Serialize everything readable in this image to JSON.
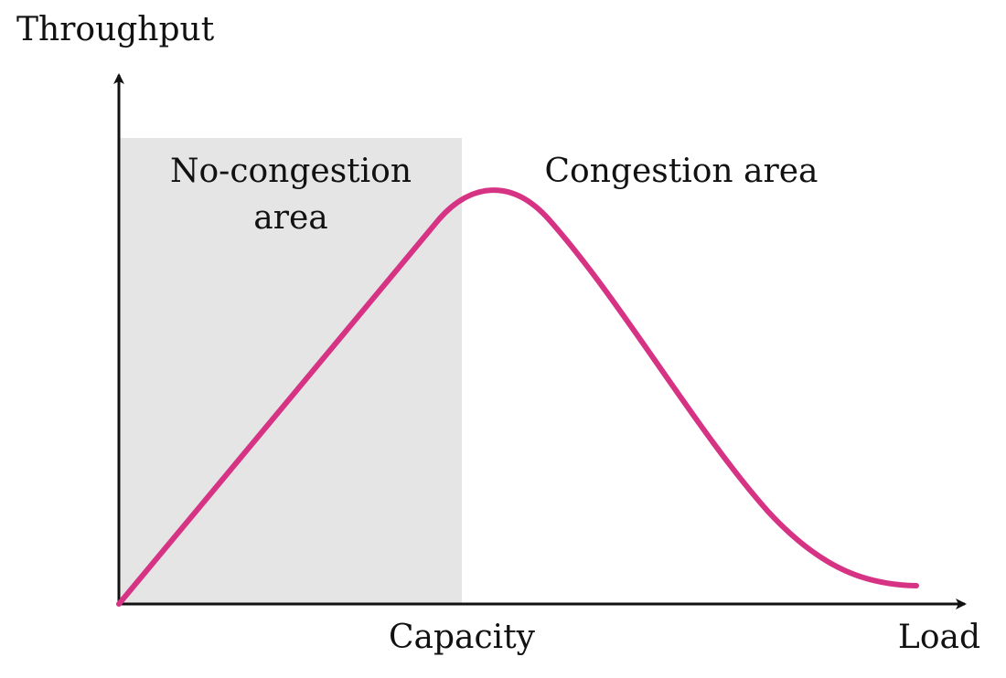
{
  "diagram": {
    "y_axis_label": "Throughput",
    "x_axis_label": "Load",
    "capacity_label": "Capacity",
    "no_congestion_label_line1": "No-congestion",
    "no_congestion_label_line2": "area",
    "congestion_label": "Congestion area"
  },
  "colors": {
    "curve": "#d63384",
    "shaded_region": "#e5e5e5",
    "axis": "#111111"
  }
}
